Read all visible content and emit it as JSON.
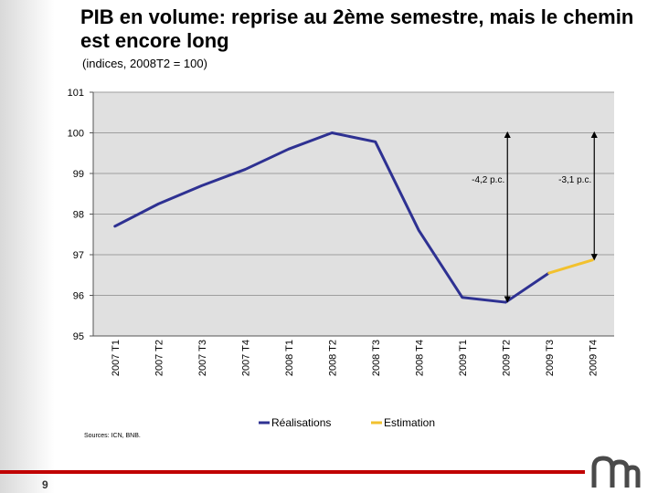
{
  "page": {
    "title": "PIB en volume: reprise au 2ème semestre, mais le chemin est encore long",
    "subtitle": "(indices, 2008T2 = 100)",
    "sources": "Sources: ICN, BNB.",
    "page_number": "9",
    "logo": "nbb-logo-icon"
  },
  "chart_data": {
    "type": "line",
    "categories": [
      "2007 T1",
      "2007 T2",
      "2007 T3",
      "2007 T4",
      "2008 T1",
      "2008 T2",
      "2008 T3",
      "2008 T4",
      "2009 T1",
      "2009 T2",
      "2009 T3",
      "2009 T4"
    ],
    "y_ticks": [
      95,
      96,
      97,
      98,
      99,
      100,
      101
    ],
    "ylim": [
      95,
      101
    ],
    "grid": true,
    "legend_position": "bottom",
    "series": [
      {
        "name": "Réalisations",
        "color": "#2e3192",
        "values": [
          97.7,
          98.25,
          98.7,
          99.1,
          99.6,
          100.0,
          99.78,
          97.6,
          95.95,
          95.83,
          96.55,
          null
        ]
      },
      {
        "name": "Estimation",
        "color": "#f2c12e",
        "values": [
          null,
          null,
          null,
          null,
          null,
          null,
          null,
          null,
          null,
          null,
          96.55,
          96.87
        ]
      }
    ],
    "annotations": [
      {
        "text": "-4,2 p.c.",
        "category": "2009 T2",
        "from": 100.0,
        "to": 95.83
      },
      {
        "text": "-3,1 p.c.",
        "category": "2009 T4",
        "from": 100.0,
        "to": 96.87
      }
    ]
  },
  "colors": {
    "realisations": "#2e3192",
    "estimation": "#f2c12e",
    "accent_bar": "#c00000",
    "plot_background": "#e0e0e0",
    "grid": "#9e9e9e"
  }
}
